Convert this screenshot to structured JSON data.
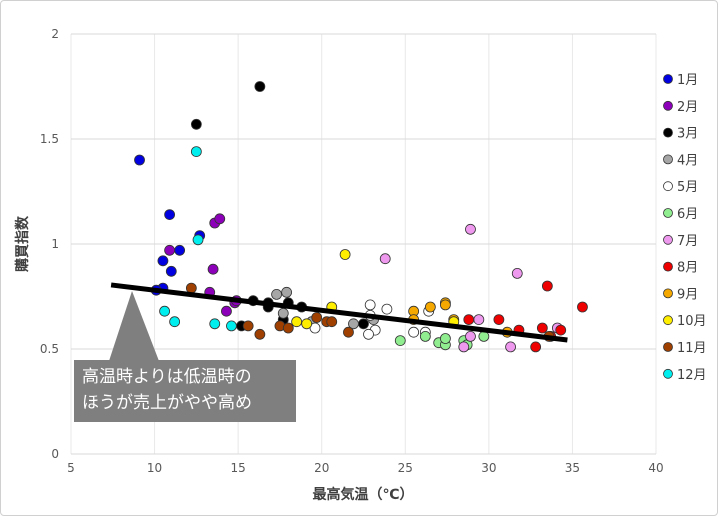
{
  "chart_data": {
    "type": "scatter",
    "title": "",
    "xlabel": "最高気温（℃）",
    "ylabel": "購買指数",
    "xlim": [
      5,
      40
    ],
    "ylim": [
      0,
      2
    ],
    "xticks": [
      5,
      10,
      15,
      20,
      25,
      30,
      35,
      40
    ],
    "yticks": [
      0,
      0.5,
      1,
      1.5,
      2
    ],
    "ytick_labels": [
      "0",
      "0.5",
      "1",
      "1.5",
      "2"
    ],
    "grid": true,
    "legend_position": "right",
    "series": [
      {
        "name": "1月",
        "color": "#0000e0",
        "points": [
          [
            9.1,
            1.4
          ],
          [
            10.9,
            1.14
          ],
          [
            12.7,
            1.04
          ],
          [
            10.5,
            0.92
          ],
          [
            11.5,
            0.97
          ],
          [
            11.0,
            0.87
          ],
          [
            10.5,
            0.79
          ],
          [
            10.1,
            0.78
          ]
        ]
      },
      {
        "name": "2月",
        "color": "#8b00b8",
        "points": [
          [
            10.9,
            0.97
          ],
          [
            13.6,
            1.1
          ],
          [
            13.9,
            1.12
          ],
          [
            13.5,
            0.88
          ],
          [
            13.3,
            0.77
          ],
          [
            14.3,
            0.68
          ],
          [
            14.8,
            0.72
          ],
          [
            14.9,
            0.73
          ]
        ]
      },
      {
        "name": "3月",
        "color": "#000000",
        "points": [
          [
            16.3,
            1.75
          ],
          [
            12.5,
            1.57
          ],
          [
            15.2,
            0.61
          ],
          [
            15.9,
            0.73
          ],
          [
            16.8,
            0.72
          ],
          [
            16.8,
            0.7
          ],
          [
            18.0,
            0.72
          ],
          [
            18.8,
            0.7
          ],
          [
            22.5,
            0.62
          ],
          [
            17.7,
            0.64
          ]
        ]
      },
      {
        "name": "4月",
        "color": "#a6a6a6",
        "points": [
          [
            17.3,
            0.76
          ],
          [
            17.9,
            0.77
          ],
          [
            17.7,
            0.67
          ],
          [
            19.4,
            0.63
          ],
          [
            21.9,
            0.62
          ],
          [
            23.1,
            0.64
          ]
        ]
      },
      {
        "name": "5月",
        "color": "#ffffff",
        "points": [
          [
            19.6,
            0.6
          ],
          [
            23.2,
            0.59
          ],
          [
            22.8,
            0.57
          ],
          [
            22.9,
            0.71
          ],
          [
            23.9,
            0.69
          ],
          [
            22.9,
            0.66
          ],
          [
            25.5,
            0.58
          ],
          [
            26.4,
            0.68
          ],
          [
            26.2,
            0.58
          ]
        ]
      },
      {
        "name": "6月",
        "color": "#90ee90",
        "points": [
          [
            24.7,
            0.54
          ],
          [
            26.2,
            0.56
          ],
          [
            27.0,
            0.53
          ],
          [
            27.4,
            0.52
          ],
          [
            27.4,
            0.55
          ],
          [
            28.5,
            0.54
          ],
          [
            28.7,
            0.52
          ],
          [
            29.7,
            0.56
          ]
        ]
      },
      {
        "name": "7月",
        "color": "#ee99ee",
        "points": [
          [
            28.9,
            1.07
          ],
          [
            23.8,
            0.93
          ],
          [
            31.7,
            0.86
          ],
          [
            29.4,
            0.64
          ],
          [
            28.9,
            0.56
          ],
          [
            28.5,
            0.51
          ],
          [
            31.3,
            0.51
          ],
          [
            34.1,
            0.6
          ]
        ]
      },
      {
        "name": "8月",
        "color": "#ee0000",
        "points": [
          [
            28.8,
            0.64
          ],
          [
            30.6,
            0.64
          ],
          [
            31.8,
            0.59
          ],
          [
            33.5,
            0.8
          ],
          [
            33.2,
            0.6
          ],
          [
            35.6,
            0.7
          ],
          [
            32.8,
            0.51
          ],
          [
            34.3,
            0.59
          ],
          [
            33.7,
            0.56
          ]
        ]
      },
      {
        "name": "9月",
        "color": "#f5a800",
        "points": [
          [
            25.5,
            0.68
          ],
          [
            25.5,
            0.64
          ],
          [
            26.5,
            0.7
          ],
          [
            27.4,
            0.72
          ],
          [
            27.4,
            0.71
          ],
          [
            27.9,
            0.64
          ],
          [
            31.1,
            0.58
          ]
        ]
      },
      {
        "name": "10月",
        "color": "#ffee00",
        "points": [
          [
            21.4,
            0.95
          ],
          [
            20.6,
            0.7
          ],
          [
            18.5,
            0.63
          ],
          [
            19.1,
            0.62
          ],
          [
            27.9,
            0.63
          ]
        ]
      },
      {
        "name": "11月",
        "color": "#a04000",
        "points": [
          [
            12.2,
            0.79
          ],
          [
            15.6,
            0.61
          ],
          [
            16.3,
            0.57
          ],
          [
            17.5,
            0.61
          ],
          [
            18.0,
            0.6
          ],
          [
            20.3,
            0.63
          ],
          [
            20.6,
            0.63
          ],
          [
            21.6,
            0.58
          ],
          [
            19.7,
            0.65
          ],
          [
            33.6,
            0.56
          ]
        ]
      },
      {
        "name": "12月",
        "color": "#00eeee",
        "points": [
          [
            12.5,
            1.44
          ],
          [
            12.6,
            1.02
          ],
          [
            10.6,
            0.68
          ],
          [
            11.2,
            0.63
          ],
          [
            13.6,
            0.62
          ],
          [
            14.6,
            0.61
          ]
        ]
      }
    ],
    "trendline": {
      "x": [
        7.4,
        34.7
      ],
      "y": [
        0.805,
        0.543
      ]
    },
    "annotation": {
      "line1": "高温時よりは低温時の",
      "line2": "ほうが売上がやや高め"
    }
  }
}
